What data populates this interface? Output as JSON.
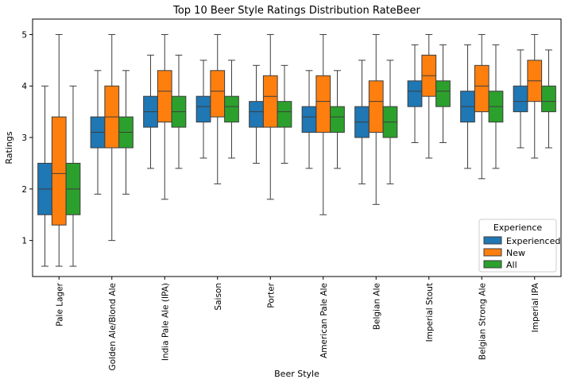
{
  "chart_data": {
    "type": "box",
    "title": "Top 10 Beer Style Ratings Distribution RateBeer",
    "xlabel": "Beer Style",
    "ylabel": "Ratings",
    "ylim": [
      0.3,
      5.3
    ],
    "yticks": [
      1,
      2,
      3,
      4,
      5
    ],
    "grid": false,
    "legend": {
      "title": "Experience",
      "placement": "lower right"
    },
    "categories": [
      "Pale Lager",
      "Golden Ale/Blond Ale",
      "India Pale Ale (IPA)",
      "Saison",
      "Porter",
      "American Pale Ale",
      "Belgian Ale",
      "Imperial Stout",
      "Belgian Strong Ale",
      "Imperial IPA"
    ],
    "series": [
      {
        "name": "Experienced",
        "color": "#1f77b4",
        "boxes": [
          {
            "whislo": 0.5,
            "q1": 1.5,
            "med": 2.0,
            "q3": 2.5,
            "whishi": 4.0
          },
          {
            "whislo": 1.9,
            "q1": 2.8,
            "med": 3.1,
            "q3": 3.4,
            "whishi": 4.3
          },
          {
            "whislo": 2.4,
            "q1": 3.2,
            "med": 3.5,
            "q3": 3.8,
            "whishi": 4.6
          },
          {
            "whislo": 2.6,
            "q1": 3.3,
            "med": 3.6,
            "q3": 3.8,
            "whishi": 4.5
          },
          {
            "whislo": 2.5,
            "q1": 3.2,
            "med": 3.5,
            "q3": 3.7,
            "whishi": 4.4
          },
          {
            "whislo": 2.4,
            "q1": 3.1,
            "med": 3.4,
            "q3": 3.6,
            "whishi": 4.3
          },
          {
            "whislo": 2.1,
            "q1": 3.0,
            "med": 3.3,
            "q3": 3.6,
            "whishi": 4.5
          },
          {
            "whislo": 2.9,
            "q1": 3.6,
            "med": 3.9,
            "q3": 4.1,
            "whishi": 4.8
          },
          {
            "whislo": 2.4,
            "q1": 3.3,
            "med": 3.6,
            "q3": 3.9,
            "whishi": 4.8
          },
          {
            "whislo": 2.8,
            "q1": 3.5,
            "med": 3.7,
            "q3": 4.0,
            "whishi": 4.7
          }
        ]
      },
      {
        "name": "New",
        "color": "#ff7f0e",
        "boxes": [
          {
            "whislo": 0.5,
            "q1": 1.3,
            "med": 2.3,
            "q3": 3.4,
            "whishi": 5.0
          },
          {
            "whislo": 1.0,
            "q1": 2.8,
            "med": 3.4,
            "q3": 4.0,
            "whishi": 5.0
          },
          {
            "whislo": 1.8,
            "q1": 3.3,
            "med": 3.9,
            "q3": 4.3,
            "whishi": 5.0
          },
          {
            "whislo": 2.1,
            "q1": 3.4,
            "med": 3.9,
            "q3": 4.3,
            "whishi": 5.0
          },
          {
            "whislo": 1.8,
            "q1": 3.2,
            "med": 3.8,
            "q3": 4.2,
            "whishi": 5.0
          },
          {
            "whislo": 1.5,
            "q1": 3.1,
            "med": 3.7,
            "q3": 4.2,
            "whishi": 5.0
          },
          {
            "whislo": 1.7,
            "q1": 3.1,
            "med": 3.7,
            "q3": 4.1,
            "whishi": 5.0
          },
          {
            "whislo": 2.6,
            "q1": 3.8,
            "med": 4.2,
            "q3": 4.6,
            "whishi": 5.0
          },
          {
            "whislo": 2.2,
            "q1": 3.5,
            "med": 4.0,
            "q3": 4.4,
            "whishi": 5.0
          },
          {
            "whislo": 2.6,
            "q1": 3.7,
            "med": 4.1,
            "q3": 4.5,
            "whishi": 5.0
          }
        ]
      },
      {
        "name": "All",
        "color": "#2ca02c",
        "boxes": [
          {
            "whislo": 0.5,
            "q1": 1.5,
            "med": 2.0,
            "q3": 2.5,
            "whishi": 4.0
          },
          {
            "whislo": 1.9,
            "q1": 2.8,
            "med": 3.1,
            "q3": 3.4,
            "whishi": 4.3
          },
          {
            "whislo": 2.4,
            "q1": 3.2,
            "med": 3.5,
            "q3": 3.8,
            "whishi": 4.6
          },
          {
            "whislo": 2.6,
            "q1": 3.3,
            "med": 3.6,
            "q3": 3.8,
            "whishi": 4.5
          },
          {
            "whislo": 2.5,
            "q1": 3.2,
            "med": 3.5,
            "q3": 3.7,
            "whishi": 4.4
          },
          {
            "whislo": 2.4,
            "q1": 3.1,
            "med": 3.4,
            "q3": 3.6,
            "whishi": 4.3
          },
          {
            "whislo": 2.1,
            "q1": 3.0,
            "med": 3.3,
            "q3": 3.6,
            "whishi": 4.5
          },
          {
            "whislo": 2.9,
            "q1": 3.6,
            "med": 3.9,
            "q3": 4.1,
            "whishi": 4.8
          },
          {
            "whislo": 2.4,
            "q1": 3.3,
            "med": 3.6,
            "q3": 3.9,
            "whishi": 4.8
          },
          {
            "whislo": 2.8,
            "q1": 3.5,
            "med": 3.7,
            "q3": 4.0,
            "whishi": 4.7
          }
        ]
      }
    ]
  }
}
